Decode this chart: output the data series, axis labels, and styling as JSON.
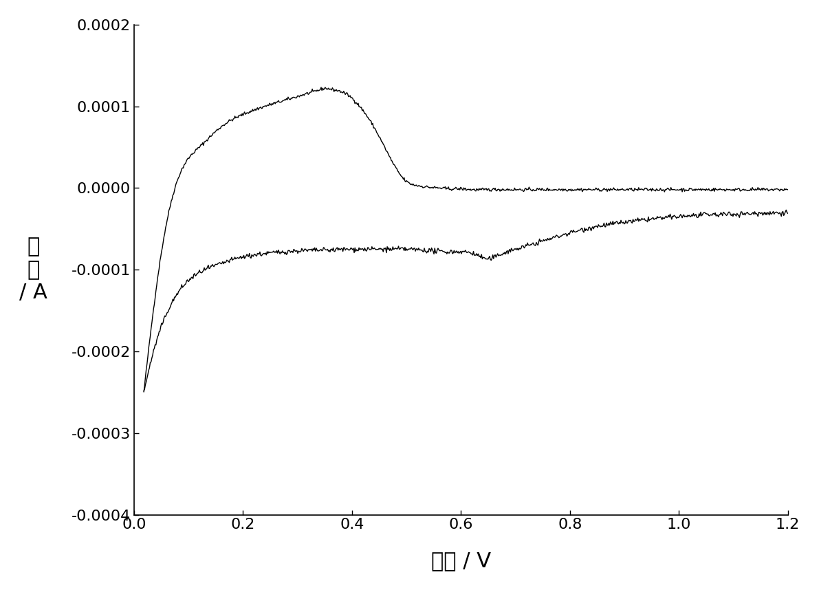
{
  "xlabel": "电压 / V",
  "ylabel_line1": "电",
  "ylabel_line2": "流",
  "ylabel_line3": "/ A",
  "xlim": [
    0.0,
    1.2
  ],
  "ylim": [
    -0.0004,
    0.0002
  ],
  "xticks": [
    0.0,
    0.2,
    0.4,
    0.6,
    0.8,
    1.0,
    1.2
  ],
  "yticks": [
    -0.0004,
    -0.0003,
    -0.0002,
    -0.0001,
    0.0,
    0.0001,
    0.0002
  ],
  "line_color": "#000000",
  "line_width": 1.0,
  "background_color": "#ffffff",
  "xlabel_fontsize": 22,
  "ylabel_fontsize": 22,
  "tick_fontsize": 16,
  "upper_x": [
    0.018,
    0.03,
    0.05,
    0.08,
    0.12,
    0.16,
    0.2,
    0.24,
    0.28,
    0.3,
    0.32,
    0.34,
    0.35,
    0.36,
    0.38,
    0.4,
    0.42,
    0.44,
    0.46,
    0.48,
    0.5,
    0.52,
    0.54,
    0.56,
    0.58,
    0.6,
    0.62,
    0.65,
    0.7,
    0.75,
    0.8,
    0.85,
    0.9,
    0.95,
    1.0,
    1.05,
    1.1,
    1.15,
    1.2
  ],
  "upper_y": [
    -0.00025,
    -0.00018,
    -8e-05,
    1e-05,
    5e-05,
    7.5e-05,
    9e-05,
    0.0001,
    0.000108,
    0.000112,
    0.000116,
    0.00012,
    0.000122,
    0.000121,
    0.000118,
    0.00011,
    9.5e-05,
    7.5e-05,
    5e-05,
    2.5e-05,
    8e-06,
    3e-06,
    1e-06,
    0.0,
    -1e-06,
    -1e-06,
    -2e-06,
    -2e-06,
    -2e-06,
    -2e-06,
    -2e-06,
    -2e-06,
    -2e-06,
    -2e-06,
    -2e-06,
    -2e-06,
    -2e-06,
    -2e-06,
    -2e-06
  ],
  "lower_x": [
    0.018,
    0.03,
    0.05,
    0.07,
    0.09,
    0.11,
    0.13,
    0.15,
    0.18,
    0.22,
    0.26,
    0.3,
    0.35,
    0.4,
    0.45,
    0.5,
    0.53,
    0.55,
    0.57,
    0.6,
    0.63,
    0.65,
    0.67,
    0.7,
    0.75,
    0.8,
    0.85,
    0.9,
    0.95,
    1.0,
    1.05,
    1.1,
    1.15,
    1.2
  ],
  "lower_y": [
    -0.00025,
    -0.000215,
    -0.00017,
    -0.00014,
    -0.00012,
    -0.000108,
    -0.0001,
    -9.5e-05,
    -8.8e-05,
    -8.2e-05,
    -7.9e-05,
    -7.7e-05,
    -7.6e-05,
    -7.5e-05,
    -7.5e-05,
    -7.5e-05,
    -7.6e-05,
    -7.7e-05,
    -7.8e-05,
    -7.8e-05,
    -8.2e-05,
    -8.7e-05,
    -8.2e-05,
    -7.5e-05,
    -6.5e-05,
    -5.5e-05,
    -4.7e-05,
    -4.2e-05,
    -3.8e-05,
    -3.5e-05,
    -3.3e-05,
    -3.2e-05,
    -3.1e-05,
    -3e-05
  ]
}
